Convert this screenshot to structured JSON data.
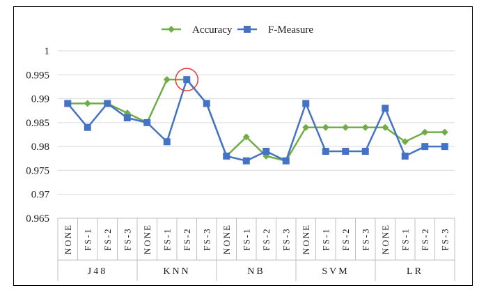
{
  "chart_data": {
    "type": "line",
    "title": "",
    "xlabel": "",
    "ylabel": "",
    "ylim": [
      0.965,
      1
    ],
    "yticks": [
      "0.965",
      "0.97",
      "0.975",
      "0.98",
      "0.985",
      "0.99",
      "0.995",
      "1"
    ],
    "y_tick_values": [
      0.965,
      0.97,
      0.975,
      0.98,
      0.985,
      0.99,
      0.995,
      1
    ],
    "grid": true,
    "legend_position": "top-center",
    "categories": [
      "NONE",
      "FS-1",
      "FS-2",
      "FS-3",
      "NONE",
      "FS-1",
      "FS-2",
      "FS-3",
      "NONE",
      "FS-1",
      "FS-2",
      "FS-3",
      "NONE",
      "FS-1",
      "FS-2",
      "FS-3",
      "NONE",
      "FS-1",
      "FS-2",
      "FS-3"
    ],
    "groups": [
      {
        "label": "J48",
        "size": 4
      },
      {
        "label": "KNN",
        "size": 4
      },
      {
        "label": "NB",
        "size": 4
      },
      {
        "label": "SVM",
        "size": 4
      },
      {
        "label": "LR",
        "size": 4
      }
    ],
    "series": [
      {
        "name": "Accuracy",
        "color": "#70ad47",
        "marker": "diamond",
        "values": [
          0.989,
          0.989,
          0.989,
          0.987,
          0.985,
          0.994,
          0.994,
          0.989,
          0.978,
          0.982,
          0.978,
          0.977,
          0.984,
          0.984,
          0.984,
          0.984,
          0.984,
          0.981,
          0.983,
          0.983
        ]
      },
      {
        "name": "F-Measure",
        "color": "#4472c4",
        "marker": "square",
        "values": [
          0.989,
          0.984,
          0.989,
          0.986,
          0.985,
          0.981,
          0.994,
          0.989,
          0.978,
          0.977,
          0.979,
          0.977,
          0.989,
          0.979,
          0.979,
          0.979,
          0.988,
          0.978,
          0.98,
          0.98
        ]
      }
    ],
    "annotations": [
      {
        "shape": "circle",
        "color": "#e03c3c",
        "category_index": 6,
        "value": 0.994
      }
    ]
  }
}
